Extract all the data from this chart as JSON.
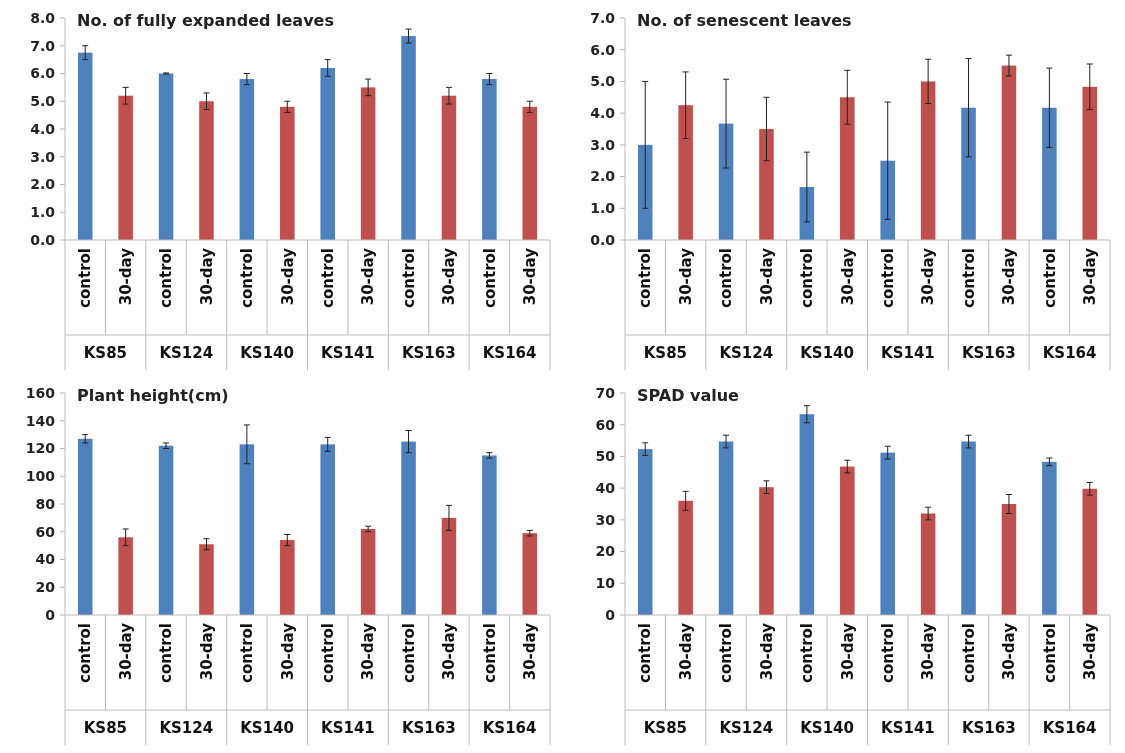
{
  "chart_data": [
    {
      "type": "bar",
      "title": "No. of fully expanded leaves",
      "categories": [
        "control",
        "30-day",
        "control",
        "30-day",
        "control",
        "30-day",
        "control",
        "30-day",
        "control",
        "30-day",
        "control",
        "30-day"
      ],
      "annotations": [
        "KS85",
        "KS124",
        "KS140",
        "KS141",
        "KS163",
        "KS164"
      ],
      "values": [
        6.75,
        5.2,
        6.0,
        5.0,
        5.8,
        4.8,
        6.2,
        5.5,
        7.35,
        5.2,
        5.8,
        4.8
      ],
      "errors": [
        0.25,
        0.3,
        0.02,
        0.3,
        0.2,
        0.2,
        0.3,
        0.3,
        0.25,
        0.3,
        0.2,
        0.2
      ],
      "colors": [
        "#4f81bd",
        "#c0504d",
        "#4f81bd",
        "#c0504d",
        "#4f81bd",
        "#c0504d",
        "#4f81bd",
        "#c0504d",
        "#4f81bd",
        "#c0504d",
        "#4f81bd",
        "#c0504d"
      ],
      "ylim": [
        0,
        8
      ],
      "yticks": [
        {
          "value": 0,
          "label": "0.0"
        },
        {
          "value": 1,
          "label": "1.0"
        },
        {
          "value": 2,
          "label": "2.0"
        },
        {
          "value": 3,
          "label": "3.0"
        },
        {
          "value": 4,
          "label": "4.0"
        },
        {
          "value": 5,
          "label": "5.0"
        },
        {
          "value": 6,
          "label": "6.0"
        },
        {
          "value": 7,
          "label": "7.0"
        },
        {
          "value": 8,
          "label": "8.0"
        }
      ]
    },
    {
      "type": "bar",
      "title": "No. of senescent leaves",
      "categories": [
        "control",
        "30-day",
        "control",
        "30-day",
        "control",
        "30-day",
        "control",
        "30-day",
        "control",
        "30-day",
        "control",
        "30-day"
      ],
      "annotations": [
        "KS85",
        "KS124",
        "KS140",
        "KS141",
        "KS163",
        "KS164"
      ],
      "values": [
        3.0,
        4.25,
        3.67,
        3.5,
        1.67,
        4.5,
        2.5,
        5.0,
        4.17,
        5.5,
        4.17,
        4.83
      ],
      "errors": [
        2.0,
        1.05,
        1.4,
        1.0,
        1.1,
        0.85,
        1.85,
        0.7,
        1.55,
        0.33,
        1.25,
        0.72
      ],
      "colors": [
        "#4f81bd",
        "#c0504d",
        "#4f81bd",
        "#c0504d",
        "#4f81bd",
        "#c0504d",
        "#4f81bd",
        "#c0504d",
        "#4f81bd",
        "#c0504d",
        "#4f81bd",
        "#c0504d"
      ],
      "ylim": [
        0,
        7
      ],
      "yticks": [
        {
          "value": 0,
          "label": "0.0"
        },
        {
          "value": 1,
          "label": "1.0"
        },
        {
          "value": 2,
          "label": "2.0"
        },
        {
          "value": 3,
          "label": "3.0"
        },
        {
          "value": 4,
          "label": "4.0"
        },
        {
          "value": 5,
          "label": "5.0"
        },
        {
          "value": 6,
          "label": "6.0"
        },
        {
          "value": 7,
          "label": "7.0"
        }
      ]
    },
    {
      "type": "bar",
      "title": "Plant height(cm)",
      "categories": [
        "control",
        "30-day",
        "control",
        "30-day",
        "control",
        "30-day",
        "control",
        "30-day",
        "control",
        "30-day",
        "control",
        "30-day"
      ],
      "annotations": [
        "KS85",
        "KS124",
        "KS140",
        "KS141",
        "KS163",
        "KS164"
      ],
      "values": [
        127,
        56,
        122,
        51,
        123,
        54,
        123,
        62,
        125,
        70,
        115,
        59
      ],
      "errors": [
        3,
        6,
        2,
        4,
        14,
        4,
        5,
        2,
        8,
        9,
        2,
        2
      ],
      "colors": [
        "#4f81bd",
        "#c0504d",
        "#4f81bd",
        "#c0504d",
        "#4f81bd",
        "#c0504d",
        "#4f81bd",
        "#c0504d",
        "#4f81bd",
        "#c0504d",
        "#4f81bd",
        "#c0504d"
      ],
      "ylim": [
        0,
        160
      ],
      "yticks": [
        0,
        20,
        40,
        60,
        80,
        100,
        120,
        140,
        160
      ]
    },
    {
      "type": "bar",
      "title": "SPAD value",
      "categories": [
        "control",
        "30-day",
        "control",
        "30-day",
        "control",
        "30-day",
        "control",
        "30-day",
        "control",
        "30-day",
        "control",
        "30-day"
      ],
      "annotations": [
        "KS85",
        "KS124",
        "KS140",
        "KS141",
        "KS163",
        "KS164"
      ],
      "values": [
        52.3,
        36,
        54.7,
        40.3,
        63.3,
        46.8,
        51.2,
        32,
        54.7,
        35,
        48.3,
        39.8
      ],
      "errors": [
        2,
        3,
        2,
        2,
        2.7,
        2,
        2,
        2,
        2,
        3,
        1.2,
        2
      ],
      "colors": [
        "#4f81bd",
        "#c0504d",
        "#4f81bd",
        "#c0504d",
        "#4f81bd",
        "#c0504d",
        "#4f81bd",
        "#c0504d",
        "#4f81bd",
        "#c0504d",
        "#4f81bd",
        "#c0504d"
      ],
      "ylim": [
        0,
        70
      ],
      "yticks": [
        0,
        10,
        20,
        30,
        40,
        50,
        60,
        70
      ]
    }
  ]
}
